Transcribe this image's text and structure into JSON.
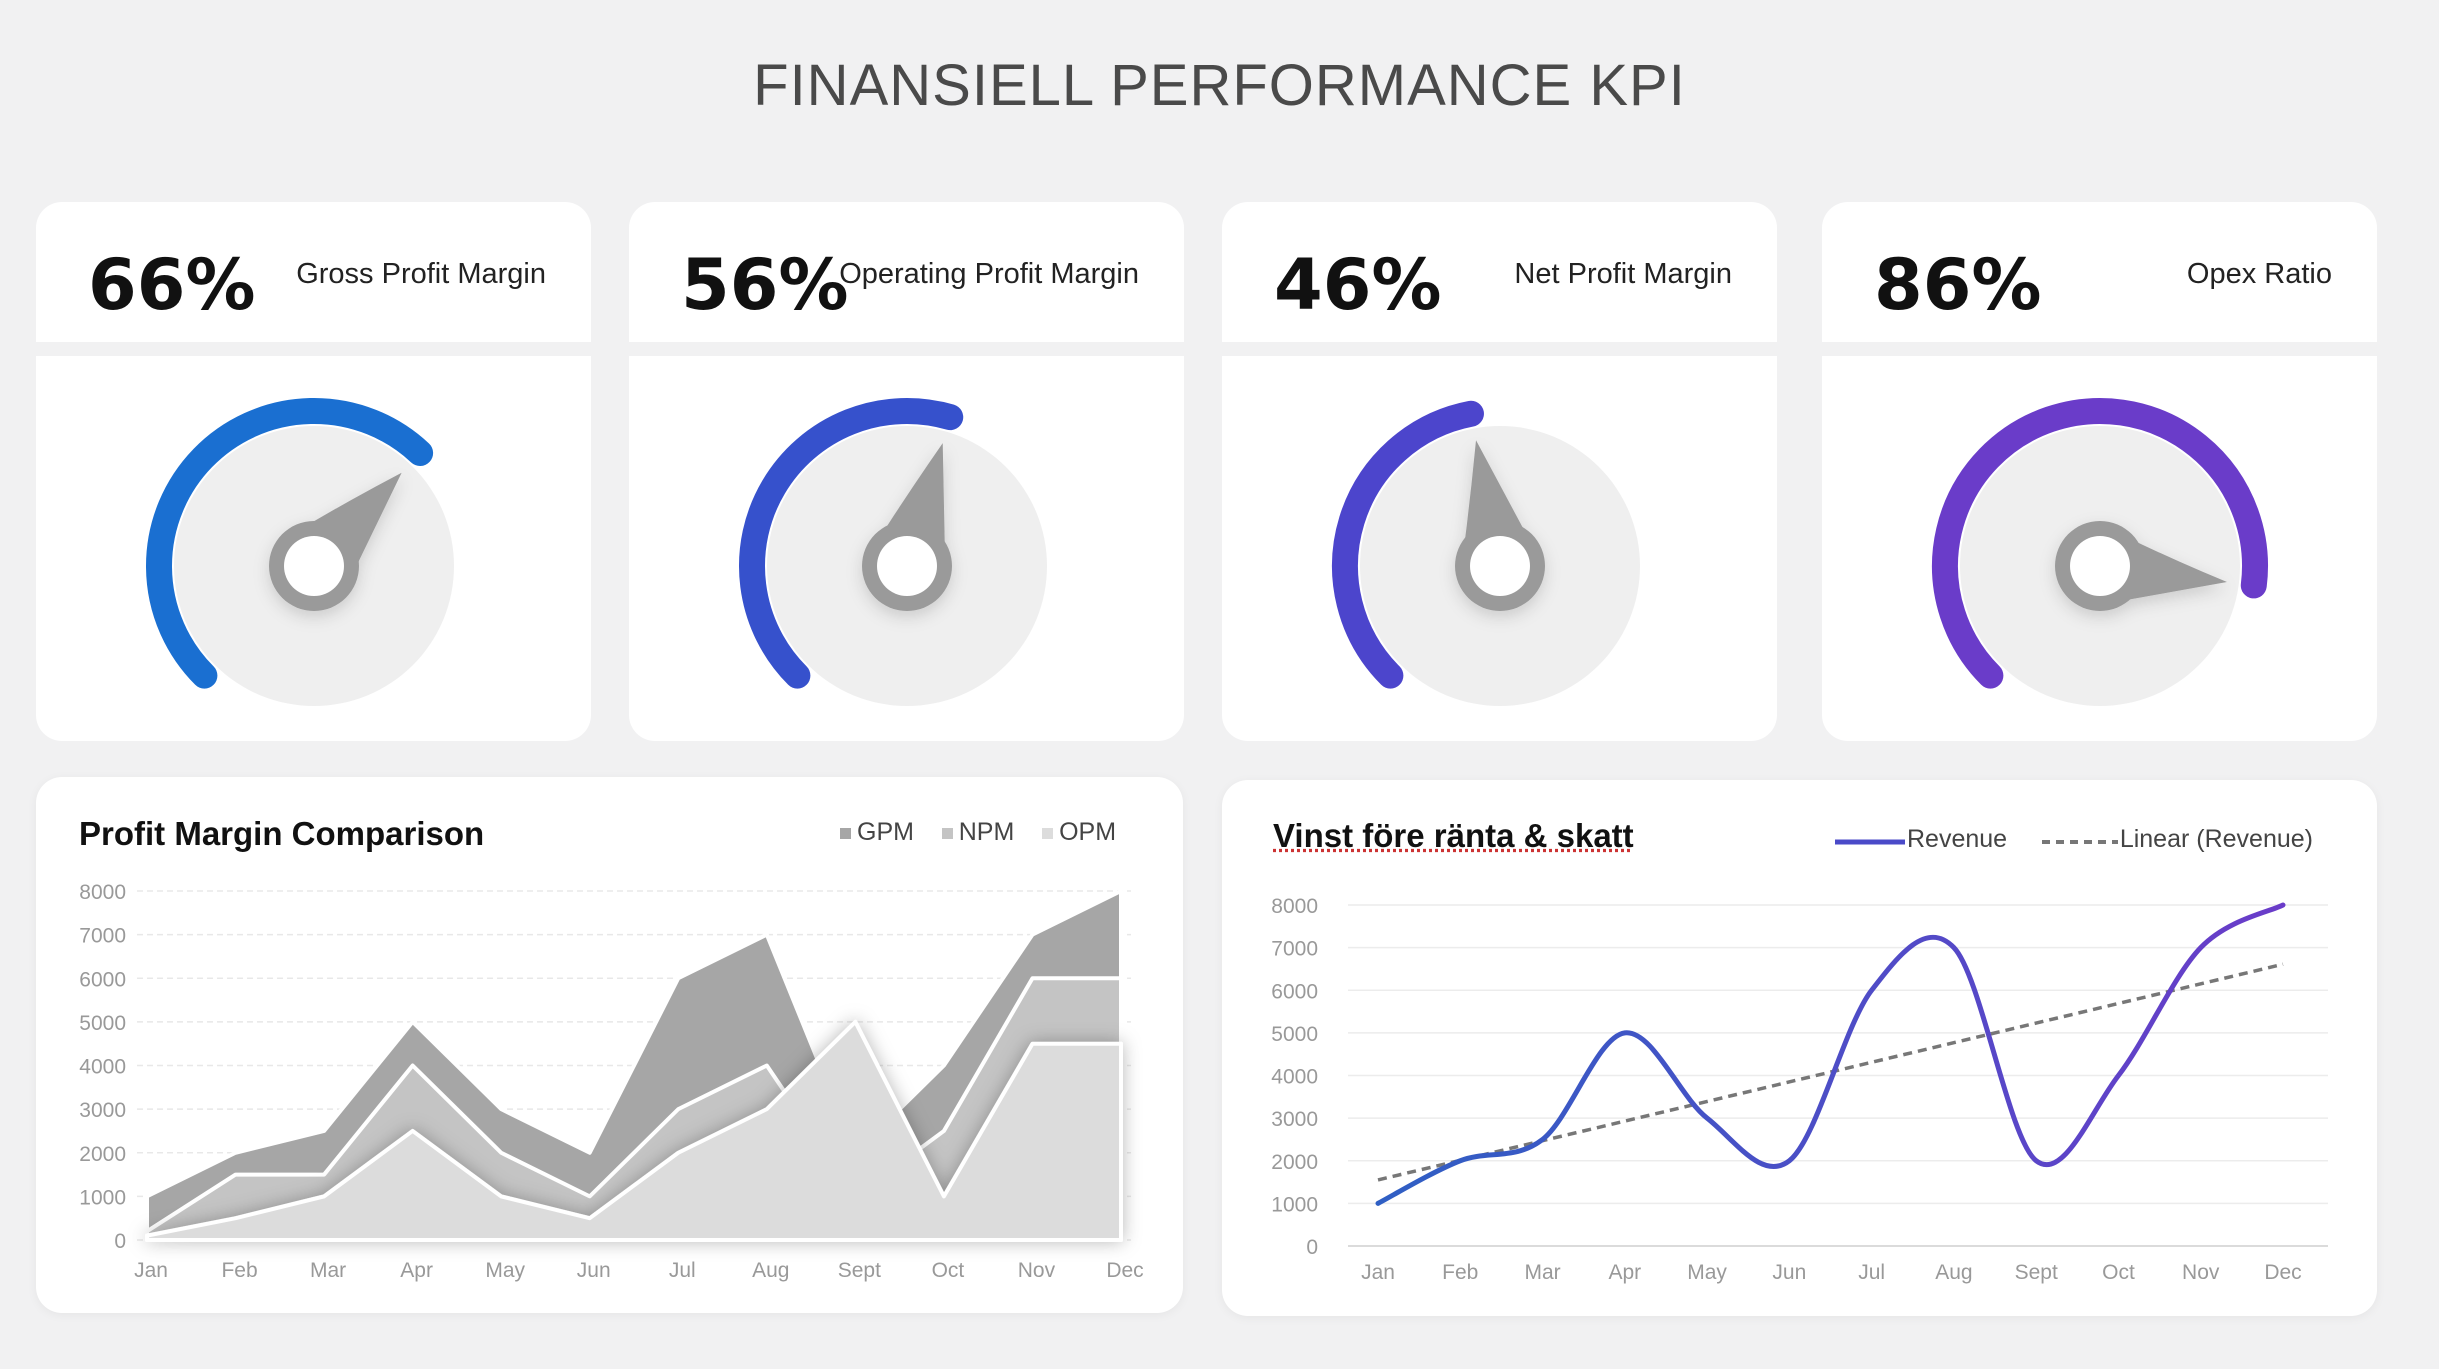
{
  "title": "FINANSIELL PERFORMANCE KPI",
  "kpis": [
    {
      "value": "66%",
      "label": "Gross Profit Margin",
      "fraction": 0.66,
      "color": "#1a6fd1"
    },
    {
      "value": "56%",
      "label": "Operating Profit Margin",
      "fraction": 0.56,
      "color": "#3651cc"
    },
    {
      "value": "46%",
      "label": "Net Profit Margin",
      "fraction": 0.46,
      "color": "#4c45cc"
    },
    {
      "value": "86%",
      "label": "Opex Ratio",
      "fraction": 0.86,
      "color": "#6a3cc9"
    }
  ],
  "chart_data": [
    {
      "type": "area",
      "title": "Profit Margin Comparison",
      "categories": [
        "Jan",
        "Feb",
        "Mar",
        "Apr",
        "May",
        "Jun",
        "Jul",
        "Aug",
        "Sept",
        "Oct",
        "Nov",
        "Dec"
      ],
      "ylim": [
        0,
        8000
      ],
      "yticks": [
        "0",
        "1000",
        "2000",
        "3000",
        "4000",
        "5000",
        "6000",
        "7000",
        "8000"
      ],
      "legend_position": "top-right",
      "series": [
        {
          "name": "GPM",
          "values": [
            1000,
            2000,
            2500,
            5000,
            3000,
            2000,
            6000,
            7000,
            2000,
            4000,
            7000,
            8000
          ],
          "color": "#a6a6a6"
        },
        {
          "name": "NPM",
          "values": [
            200,
            1500,
            1500,
            4000,
            2000,
            1000,
            3000,
            4000,
            1000,
            2500,
            6000,
            6000
          ],
          "color": "#c4c4c4"
        },
        {
          "name": "OPM",
          "values": [
            100,
            500,
            1000,
            2500,
            1000,
            500,
            2000,
            3000,
            5000,
            1000,
            4500,
            4500
          ],
          "color": "#dcdcdc"
        }
      ]
    },
    {
      "type": "line",
      "title": "Vinst före ränta & skatt",
      "categories": [
        "Jan",
        "Feb",
        "Mar",
        "Apr",
        "May",
        "Jun",
        "Jul",
        "Aug",
        "Sept",
        "Oct",
        "Nov",
        "Dec"
      ],
      "ylim": [
        0,
        8000
      ],
      "yticks": [
        "0",
        "1000",
        "2000",
        "3000",
        "4000",
        "5000",
        "6000",
        "7000",
        "8000"
      ],
      "legend_position": "top-right",
      "series": [
        {
          "name": "Revenue",
          "values": [
            1000,
            2000,
            2500,
            5000,
            3000,
            2000,
            6000,
            7000,
            2000,
            4000,
            7000,
            8000
          ],
          "color": "#4a4ac8"
        },
        {
          "name": "Linear (Revenue)",
          "values": [
            1550,
            2010,
            2470,
            2930,
            3390,
            3850,
            4310,
            4770,
            5230,
            5690,
            6150,
            6610
          ],
          "color": "#777777"
        }
      ]
    }
  ]
}
